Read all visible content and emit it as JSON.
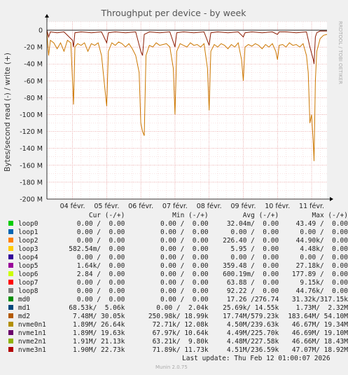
{
  "chart_data": {
    "type": "line",
    "title": "Throughput per device - by week",
    "ylabel": "Bytes/second read (-) / write (+)",
    "ylim": [
      -200000000,
      10000000
    ],
    "y_ticks": [
      {
        "value": 0,
        "label": "0"
      },
      {
        "value": -20000000,
        "label": "-20 M"
      },
      {
        "value": -40000000,
        "label": "-40 M"
      },
      {
        "value": -60000000,
        "label": "-60 M"
      },
      {
        "value": -80000000,
        "label": "-80 M"
      },
      {
        "value": -100000000,
        "label": "-100 M"
      },
      {
        "value": -120000000,
        "label": "-120 M"
      },
      {
        "value": -140000000,
        "label": "-140 M"
      },
      {
        "value": -160000000,
        "label": "-160 M"
      },
      {
        "value": -180000000,
        "label": "-180 M"
      },
      {
        "value": -200000000,
        "label": "-200 M"
      }
    ],
    "x_range_days": [
      0,
      8.2
    ],
    "x_ticks": [
      {
        "day": 0.75,
        "label": "04 févr."
      },
      {
        "day": 1.75,
        "label": "05 févr."
      },
      {
        "day": 2.75,
        "label": "06 févr."
      },
      {
        "day": 3.75,
        "label": "07 févr."
      },
      {
        "day": 4.75,
        "label": "08 févr."
      },
      {
        "day": 5.75,
        "label": "09 févr."
      },
      {
        "day": 6.75,
        "label": "10 févr."
      },
      {
        "day": 7.75,
        "label": "11 févr."
      }
    ],
    "grid": true,
    "series": [
      {
        "name": "md2",
        "color": "#cc7700",
        "points": [
          [
            0,
            -2
          ],
          [
            0.05,
            -30
          ],
          [
            0.1,
            -12
          ],
          [
            0.2,
            -15
          ],
          [
            0.3,
            -22
          ],
          [
            0.4,
            -15
          ],
          [
            0.5,
            -25
          ],
          [
            0.6,
            -12
          ],
          [
            0.7,
            -15
          ],
          [
            0.75,
            -60
          ],
          [
            0.78,
            -88
          ],
          [
            0.82,
            -20
          ],
          [
            0.9,
            -16
          ],
          [
            1.0,
            -18
          ],
          [
            1.1,
            -15
          ],
          [
            1.2,
            -25
          ],
          [
            1.3,
            -16
          ],
          [
            1.4,
            -18
          ],
          [
            1.5,
            -15
          ],
          [
            1.6,
            -30
          ],
          [
            1.7,
            -70
          ],
          [
            1.75,
            -90
          ],
          [
            1.8,
            -25
          ],
          [
            1.9,
            -15
          ],
          [
            2.0,
            -18
          ],
          [
            2.1,
            -14
          ],
          [
            2.2,
            -16
          ],
          [
            2.3,
            -20
          ],
          [
            2.4,
            -16
          ],
          [
            2.5,
            -22
          ],
          [
            2.6,
            -30
          ],
          [
            2.7,
            -50
          ],
          [
            2.75,
            -110
          ],
          [
            2.8,
            -120
          ],
          [
            2.85,
            -125
          ],
          [
            2.9,
            -30
          ],
          [
            3.0,
            -18
          ],
          [
            3.1,
            -20
          ],
          [
            3.2,
            -15
          ],
          [
            3.3,
            -18
          ],
          [
            3.4,
            -17
          ],
          [
            3.5,
            -16
          ],
          [
            3.6,
            -20
          ],
          [
            3.7,
            -45
          ],
          [
            3.75,
            -100
          ],
          [
            3.8,
            -25
          ],
          [
            3.9,
            -16
          ],
          [
            4.0,
            -18
          ],
          [
            4.1,
            -20
          ],
          [
            4.2,
            -15
          ],
          [
            4.3,
            -18
          ],
          [
            4.4,
            -17
          ],
          [
            4.5,
            -20
          ],
          [
            4.6,
            -16
          ],
          [
            4.7,
            -45
          ],
          [
            4.75,
            -95
          ],
          [
            4.8,
            -25
          ],
          [
            4.9,
            -17
          ],
          [
            5.0,
            -20
          ],
          [
            5.1,
            -16
          ],
          [
            5.2,
            -18
          ],
          [
            5.3,
            -22
          ],
          [
            5.4,
            -17
          ],
          [
            5.5,
            -20
          ],
          [
            5.6,
            -15
          ],
          [
            5.7,
            -35
          ],
          [
            5.75,
            -60
          ],
          [
            5.8,
            -20
          ],
          [
            5.9,
            -17
          ],
          [
            6.0,
            -19
          ],
          [
            6.1,
            -16
          ],
          [
            6.2,
            -18
          ],
          [
            6.3,
            -22
          ],
          [
            6.4,
            -17
          ],
          [
            6.5,
            -20
          ],
          [
            6.6,
            -16
          ],
          [
            6.7,
            -25
          ],
          [
            6.75,
            -35
          ],
          [
            6.8,
            -18
          ],
          [
            6.9,
            -17
          ],
          [
            7.0,
            -20
          ],
          [
            7.1,
            -15
          ],
          [
            7.2,
            -18
          ],
          [
            7.3,
            -17
          ],
          [
            7.4,
            -20
          ],
          [
            7.5,
            -16
          ],
          [
            7.6,
            -30
          ],
          [
            7.65,
            -50
          ],
          [
            7.7,
            -110
          ],
          [
            7.75,
            -100
          ],
          [
            7.8,
            -135
          ],
          [
            7.82,
            -155
          ],
          [
            7.86,
            -60
          ],
          [
            7.9,
            -25
          ],
          [
            8.0,
            -10
          ],
          [
            8.1,
            -6
          ],
          [
            8.2,
            -5
          ]
        ]
      },
      {
        "name": "md1",
        "color": "#8b1a00",
        "points": [
          [
            0,
            0
          ],
          [
            0.05,
            -8
          ],
          [
            0.1,
            -2
          ],
          [
            0.3,
            -3
          ],
          [
            0.5,
            -2
          ],
          [
            0.75,
            -12
          ],
          [
            0.78,
            -20
          ],
          [
            0.82,
            -3
          ],
          [
            1.0,
            -2
          ],
          [
            1.3,
            -3
          ],
          [
            1.6,
            -2
          ],
          [
            1.75,
            -15
          ],
          [
            1.8,
            -3
          ],
          [
            2.0,
            -2
          ],
          [
            2.3,
            -3
          ],
          [
            2.6,
            -2
          ],
          [
            2.75,
            -25
          ],
          [
            2.8,
            -30
          ],
          [
            2.85,
            -5
          ],
          [
            3.0,
            -2
          ],
          [
            3.3,
            -3
          ],
          [
            3.6,
            -2
          ],
          [
            3.75,
            -20
          ],
          [
            3.8,
            -3
          ],
          [
            4.0,
            -2
          ],
          [
            4.3,
            -3
          ],
          [
            4.6,
            -2
          ],
          [
            4.75,
            -18
          ],
          [
            4.8,
            -3
          ],
          [
            5.0,
            -2
          ],
          [
            5.3,
            -3
          ],
          [
            5.6,
            -2
          ],
          [
            5.75,
            -8
          ],
          [
            5.8,
            -3
          ],
          [
            6.0,
            -2
          ],
          [
            6.3,
            -3
          ],
          [
            6.6,
            -2
          ],
          [
            6.75,
            -5
          ],
          [
            6.8,
            -2
          ],
          [
            7.0,
            -2
          ],
          [
            7.3,
            -3
          ],
          [
            7.6,
            -2
          ],
          [
            7.7,
            -20
          ],
          [
            7.8,
            -35
          ],
          [
            7.82,
            -40
          ],
          [
            7.86,
            -8
          ],
          [
            7.9,
            -3
          ],
          [
            8.0,
            -1
          ],
          [
            8.2,
            -1
          ]
        ]
      }
    ]
  },
  "side_label": "RRDTOOL / TOBI OETIKER",
  "legend": {
    "headers": {
      "cur": "Cur (-/+)",
      "min": "Min (-/+)",
      "avg": "Avg (-/+)",
      "max": "Max (-/+)"
    },
    "rows": [
      {
        "name": "loop0",
        "color": "#00cc00",
        "cur": "0.00 /  0.00",
        "min": "0.00 /  0.00",
        "avg": "32.04m/  0.00",
        "max": "43.49 /  0.00"
      },
      {
        "name": "loop1",
        "color": "#0066b3",
        "cur": "0.00 /  0.00",
        "min": "0.00 /  0.00",
        "avg": "0.00 /  0.00",
        "max": "0.00 /  0.00"
      },
      {
        "name": "loop2",
        "color": "#ff8000",
        "cur": "0.00 /  0.00",
        "min": "0.00 /  0.00",
        "avg": "226.40 /  0.00",
        "max": "44.90k/  0.00"
      },
      {
        "name": "loop3",
        "color": "#ffcc00",
        "cur": "582.54m/  0.00",
        "min": "0.00 /  0.00",
        "avg": "5.95 /  0.00",
        "max": "4.48k/  0.00"
      },
      {
        "name": "loop4",
        "color": "#330099",
        "cur": "0.00 /  0.00",
        "min": "0.00 /  0.00",
        "avg": "0.00 /  0.00",
        "max": "0.00 /  0.00"
      },
      {
        "name": "loop5",
        "color": "#990099",
        "cur": "1.64k/  0.00",
        "min": "0.00 /  0.00",
        "avg": "359.48 /  0.00",
        "max": "27.18k/  0.00"
      },
      {
        "name": "loop6",
        "color": "#ccff00",
        "cur": "2.84 /  0.00",
        "min": "0.00 /  0.00",
        "avg": "600.19m/  0.00",
        "max": "177.89 /  0.00"
      },
      {
        "name": "loop7",
        "color": "#ff0000",
        "cur": "0.00 /  0.00",
        "min": "0.00 /  0.00",
        "avg": "63.88 /  0.00",
        "max": "9.15k/  0.00"
      },
      {
        "name": "loop8",
        "color": "#808080",
        "cur": "0.00 /  0.00",
        "min": "0.00 /  0.00",
        "avg": "92.22 /  0.00",
        "max": "44.76k/  0.00"
      },
      {
        "name": "md0",
        "color": "#008f00",
        "cur": "0.00 /  0.00",
        "min": "0.00 /  0.00",
        "avg": "17.26 /276.74",
        "max": "31.32k/317.15k"
      },
      {
        "name": "md1",
        "color": "#00487d",
        "cur": "68.53k/  5.06k",
        "min": "0.00 /  2.04k",
        "avg": "25.69k/ 14.55k",
        "max": "1.73M/  2.32M"
      },
      {
        "name": "md2",
        "color": "#b35a00",
        "cur": "7.48M/ 30.05k",
        "min": "250.98k/ 18.99k",
        "avg": "17.74M/579.23k",
        "max": "183.64M/ 54.10M"
      },
      {
        "name": "nvme0n1",
        "color": "#b38f00",
        "cur": "1.89M/ 26.64k",
        "min": "72.71k/ 12.08k",
        "avg": "4.50M/239.63k",
        "max": "46.67M/ 19.34M"
      },
      {
        "name": "nvme1n1",
        "color": "#6b006b",
        "cur": "1.89M/ 19.63k",
        "min": "67.97k/ 10.64k",
        "avg": "4.49M/225.70k",
        "max": "46.69M/ 19.10M"
      },
      {
        "name": "nvme2n1",
        "color": "#8fb300",
        "cur": "1.91M/ 21.13k",
        "min": "63.21k/  9.80k",
        "avg": "4.48M/227.58k",
        "max": "46.66M/ 18.43M"
      },
      {
        "name": "nvme3n1",
        "color": "#b30000",
        "cur": "1.90M/ 22.73k",
        "min": "71.89k/ 11.73k",
        "avg": "4.51M/236.59k",
        "max": "47.07M/ 18.92M"
      }
    ]
  },
  "last_update": "Last update: Thu Feb 12 01:00:07 2026",
  "footer": "Munin 2.0.75"
}
